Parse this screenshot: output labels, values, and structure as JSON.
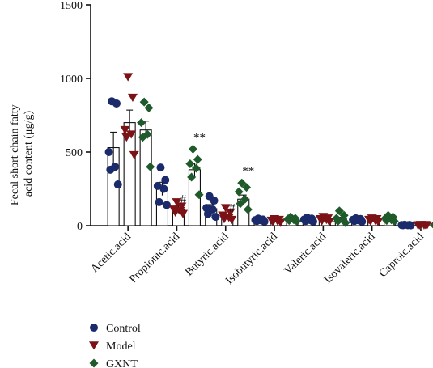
{
  "chart_data": {
    "type": "scatter",
    "ylabel_lines": [
      "Fecal short chain fatty",
      "acid content (μg/g)"
    ],
    "ylim": [
      0,
      1500
    ],
    "yticks": [
      0,
      500,
      1000,
      1500
    ],
    "categories": [
      "Acetic.acid",
      "Propionic.acid",
      "Butyric.acid",
      "Isobutyric.acid",
      "Valeric.acid",
      "Isovaleric.acid",
      "Caproic.acid"
    ],
    "legend_position": "bottom-left",
    "series": [
      {
        "name": "Control",
        "marker": "circle",
        "color": "#1b2a6b",
        "means": [
          530,
          250,
          115,
          38,
          40,
          38,
          4
        ],
        "errors": [
          105,
          45,
          28,
          4,
          5,
          5,
          1
        ],
        "points": [
          [
            845,
            830,
            500,
            400,
            380,
            280
          ],
          [
            395,
            310,
            270,
            250,
            160,
            140
          ],
          [
            200,
            170,
            120,
            110,
            80,
            60
          ],
          [
            48,
            42,
            38,
            35,
            32,
            28
          ],
          [
            55,
            48,
            42,
            38,
            32,
            28
          ],
          [
            50,
            45,
            40,
            35,
            32,
            28
          ],
          [
            6,
            5,
            4,
            3,
            3,
            2
          ]
        ]
      },
      {
        "name": "Model",
        "marker": "triangle-down",
        "color": "#7a1216",
        "means": [
          700,
          110,
          60,
          30,
          35,
          32,
          3
        ],
        "errors": [
          85,
          25,
          15,
          6,
          7,
          5,
          1
        ],
        "points": [
          [
            1010,
            870,
            650,
            620,
            600,
            480
          ],
          [
            160,
            130,
            110,
            100,
            90,
            80
          ],
          [
            120,
            90,
            70,
            55,
            45,
            40
          ],
          [
            45,
            40,
            35,
            30,
            25,
            20
          ],
          [
            60,
            50,
            45,
            40,
            30,
            25
          ],
          [
            50,
            45,
            40,
            35,
            30,
            25
          ],
          [
            6,
            5,
            4,
            3,
            2,
            2
          ]
        ]
      },
      {
        "name": "GXNT",
        "marker": "diamond",
        "color": "#1f5a2a",
        "means": [
          650,
          380,
          180,
          40,
          45,
          45,
          4
        ],
        "errors": [
          60,
          45,
          28,
          5,
          12,
          7,
          1
        ],
        "points": [
          [
            840,
            800,
            700,
            620,
            600,
            400
          ],
          [
            520,
            450,
            420,
            390,
            330,
            210
          ],
          [
            290,
            260,
            230,
            180,
            150,
            110
          ],
          [
            60,
            50,
            45,
            40,
            35,
            30
          ],
          [
            100,
            70,
            50,
            40,
            30,
            20
          ],
          [
            70,
            60,
            50,
            40,
            35,
            30
          ],
          [
            6,
            5,
            4,
            3,
            3,
            2
          ]
        ]
      }
    ],
    "annotations": [
      {
        "category": 1,
        "series": 1,
        "text": "#"
      },
      {
        "category": 1,
        "series": 2,
        "text": "**"
      },
      {
        "category": 2,
        "series": 1,
        "text": "#"
      },
      {
        "category": 2,
        "series": 2,
        "text": "**"
      }
    ]
  }
}
